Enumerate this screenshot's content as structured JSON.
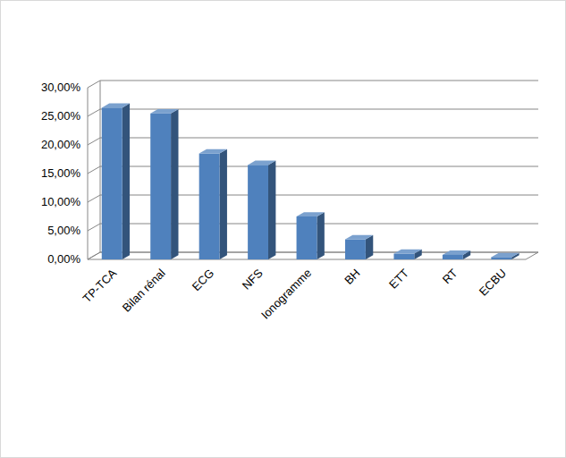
{
  "chart_data": {
    "type": "bar",
    "categories": [
      "TP-TCA",
      "Bilan rénal",
      "ECG",
      "NFS",
      "Ionogramme",
      "BH",
      "ETT",
      "RT",
      "ECBU"
    ],
    "values": [
      26.5,
      25.5,
      18.5,
      16.5,
      7.5,
      3.5,
      1,
      0.8,
      0.4
    ],
    "color": "#4f81bd",
    "ylim": [
      0,
      30
    ],
    "yticks": [
      {
        "value": 0,
        "label": "0,00%"
      },
      {
        "value": 5,
        "label": "5,00%"
      },
      {
        "value": 10,
        "label": "10,00%"
      },
      {
        "value": 15,
        "label": "15,00%"
      },
      {
        "value": 20,
        "label": "20,00%"
      },
      {
        "value": 25,
        "label": "25,00%"
      },
      {
        "value": 30,
        "label": "30,00%"
      }
    ],
    "grid": true
  }
}
